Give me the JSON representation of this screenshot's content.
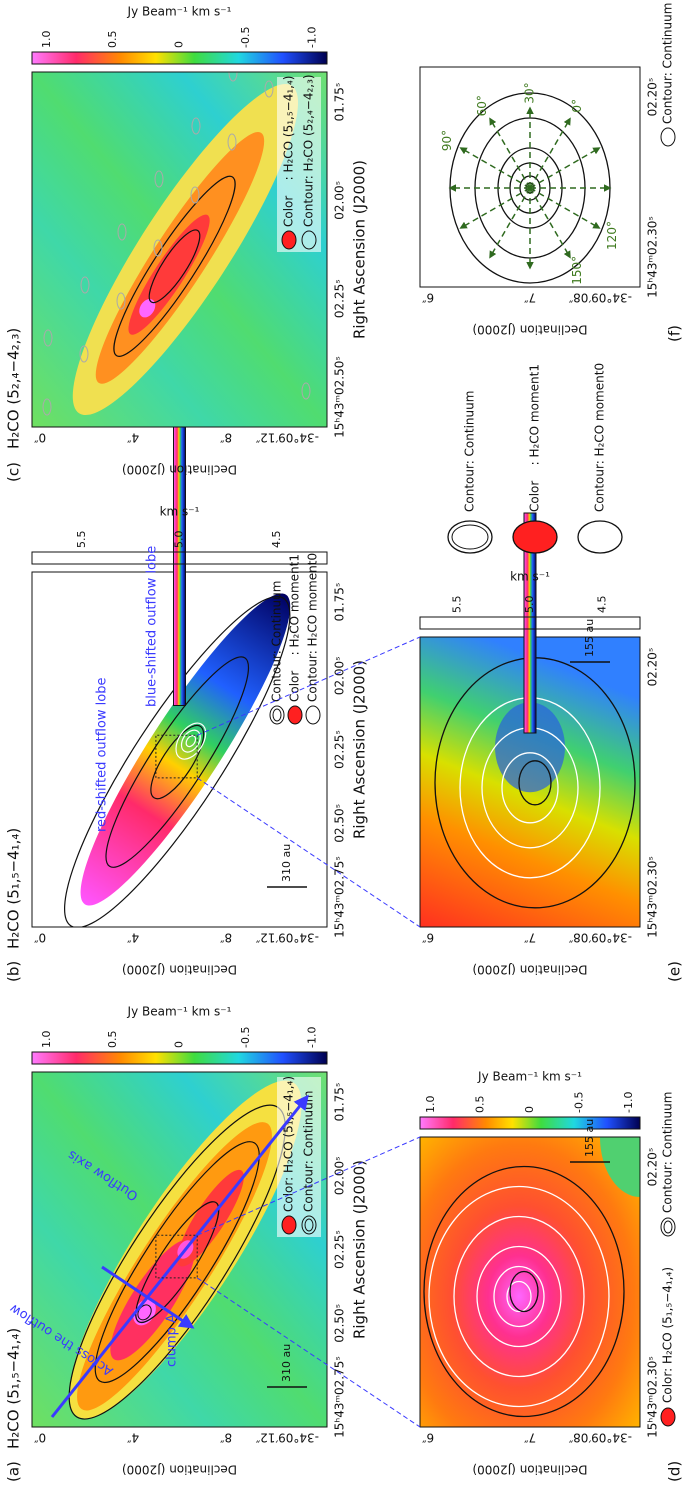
{
  "panels": [
    {
      "label": "(a)",
      "title": "H₂CO (5₁,₅−4₁,₄)",
      "dec_label": "Declination (J2000)",
      "dec_ticks": [
        "0″",
        "4″",
        "8″",
        "-34°09′12″"
      ],
      "ra_label": "Right Ascension (J2000)",
      "ra_ticks": [
        "15ʰ43ᵐ02.75ˢ",
        "02.50ˢ",
        "02.25ˢ",
        "02.00ˢ",
        "01.75ˢ"
      ],
      "colorbar": {
        "label": "Jy Beam⁻¹ km s⁻¹",
        "ticks": [
          "1.0",
          "0.5",
          "0",
          "-0.5",
          "-1.0"
        ]
      },
      "scale_bar": "310 au",
      "legend": [
        "Color: H₂CO (5₁,₅−4₁,₄)",
        "Contour: Continuum"
      ],
      "annotations": [
        "Across the outflow",
        "Outflow axis",
        "clump A"
      ]
    },
    {
      "label": "(b)",
      "title": "H₂CO (5₁,₅−4₁,₄)",
      "dec_label": "Declination (J2000)",
      "dec_ticks": [
        "0″",
        "4″",
        "8″",
        "-34°09′12″"
      ],
      "ra_label": "Right Ascension (J2000)",
      "ra_ticks": [
        "15ʰ43ᵐ02.75ˢ",
        "02.50ˢ",
        "02.25ˢ",
        "02.00ˢ",
        "01.75ˢ"
      ],
      "colorbar": {
        "label": "km s⁻¹",
        "ticks": [
          "5.5",
          "5.0",
          "4.5"
        ]
      },
      "scale_bar": "310 au",
      "legend": [
        "Contour: Continuum",
        "Color    : H₂CO moment1",
        "Contour: H₂CO moment0"
      ],
      "annotations": [
        "red-shifted outflow lobe",
        "blue-shifted outflow lobe"
      ]
    },
    {
      "label": "(c)",
      "title": "H₂CO (5₂,₄−4₂,₃)",
      "dec_label": "Declination (J2000)",
      "dec_ticks": [
        "0″",
        "4″",
        "8″",
        "-34°09′12″"
      ],
      "ra_label": "Right Ascension (J2000)",
      "ra_ticks": [
        "15ʰ43ᵐ02.50ˢ",
        "02.25ˢ",
        "02.00ˢ",
        "01.75ˢ"
      ],
      "colorbar": {
        "label": "Jy Beam⁻¹ km s⁻¹",
        "ticks": [
          "1.0",
          "0.5",
          "0",
          "-0.5",
          "-1.0"
        ]
      },
      "legend": [
        "Color    : H₂CO (5₁,₅−4₁,₄)",
        "Contour: H₂CO (5₂,₄−4₂,₃)"
      ]
    },
    {
      "label": "(d)",
      "dec_label": "Declination (J2000)",
      "dec_ticks": [
        "6″",
        "7″",
        "-34°09′08″"
      ],
      "ra_ticks": [
        "15ʰ43ᵐ02.30ˢ",
        "02.20ˢ"
      ],
      "colorbar": {
        "label": "Jy Beam⁻¹ km s⁻¹",
        "ticks": [
          "1.0",
          "0.5",
          "0",
          "-0.5",
          "-1.0"
        ]
      },
      "scale_bar": "155 au",
      "legend": [
        "Color: H₂CO (5₁,₅−4₁,₄)",
        "Contour: Continuum"
      ]
    },
    {
      "label": "(e)",
      "dec_label": "Declination (J2000)",
      "dec_ticks": [
        "6″",
        "7″",
        "-34°09′08″"
      ],
      "ra_ticks": [
        "15ʰ43ᵐ02.30ˢ",
        "02.20ˢ"
      ],
      "colorbar": {
        "label": "km s⁻¹",
        "ticks": [
          "5.5",
          "5.0",
          "4.5"
        ]
      },
      "scale_bar": "155 au",
      "legend": [
        "Contour: Continuum",
        "Color    : H₂CO moment1",
        "Contour: H₂CO moment0"
      ]
    },
    {
      "label": "(f)",
      "dec_label": "Declination (J2000)",
      "dec_ticks": [
        "6″",
        "7″",
        "-34°09′08″"
      ],
      "ra_ticks": [
        "15ʰ43ᵐ02.30ˢ",
        "02.20ˢ"
      ],
      "angles": [
        "90°",
        "60°",
        "30°",
        "0°",
        "150°",
        "120°"
      ],
      "legend": [
        "Contour: Continuum"
      ]
    }
  ]
}
